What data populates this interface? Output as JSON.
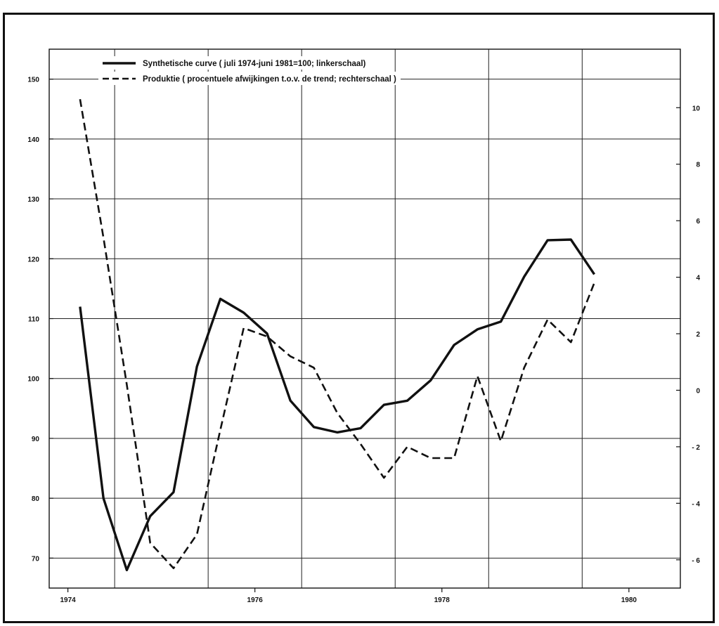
{
  "chart_data": {
    "type": "line",
    "title": "",
    "xlabel": "",
    "ylabel": "",
    "x_ticks": [
      "1974",
      "1976",
      "1978",
      "1980"
    ],
    "x_tick_values": [
      1974,
      1976,
      1978,
      1980
    ],
    "xlim": [
      1973.8,
      1980.55
    ],
    "left_axis": {
      "ylim": [
        65,
        155
      ],
      "ticks": [
        70,
        80,
        90,
        100,
        110,
        120,
        130,
        140,
        150
      ],
      "tick_labels": [
        "70",
        "80",
        "90",
        "100",
        "110",
        "120",
        "130",
        "140",
        "150"
      ]
    },
    "right_axis": {
      "ylim": [
        -7,
        12.07
      ],
      "ticks": [
        -6,
        -4,
        -2,
        0,
        2,
        4,
        6,
        8,
        10
      ],
      "tick_labels": [
        "- 6",
        "- 4",
        "- 2",
        "0",
        "2",
        "4",
        "6",
        "8",
        "10"
      ]
    },
    "grid": true,
    "grid_x": [
      1974.5,
      1975.5,
      1976.5,
      1977.5,
      1978.5,
      1979.5
    ],
    "legend": {
      "placement": "top-left",
      "entries": [
        {
          "label": "Synthetische curve ( juli 1974-juni 1981=100; linkerschaal)",
          "style": "solid"
        },
        {
          "label": "Produktie ( procentuele afwijkingen t.o.v. de trend; rechterschaal )",
          "style": "dashed"
        }
      ]
    },
    "series": [
      {
        "name": "Synthetische curve ( juli 1974-juni 1981=100; linkerschaal)",
        "axis": "left",
        "style": "solid",
        "color": "#111111",
        "points": [
          {
            "x": 1974.13,
            "y": 112
          },
          {
            "x": 1974.38,
            "y": 80
          },
          {
            "x": 1974.63,
            "y": 68
          },
          {
            "x": 1974.88,
            "y": 77
          },
          {
            "x": 1975.13,
            "y": 81
          },
          {
            "x": 1975.38,
            "y": 102
          },
          {
            "x": 1975.63,
            "y": 113.3
          },
          {
            "x": 1975.88,
            "y": 111
          },
          {
            "x": 1976.13,
            "y": 107.5
          },
          {
            "x": 1976.38,
            "y": 96.3
          },
          {
            "x": 1976.63,
            "y": 91.9
          },
          {
            "x": 1976.88,
            "y": 91
          },
          {
            "x": 1977.13,
            "y": 91.7
          },
          {
            "x": 1977.38,
            "y": 95.6
          },
          {
            "x": 1977.63,
            "y": 96.3
          },
          {
            "x": 1977.88,
            "y": 99.7
          },
          {
            "x": 1978.13,
            "y": 105.6
          },
          {
            "x": 1978.38,
            "y": 108.2
          },
          {
            "x": 1978.63,
            "y": 109.5
          },
          {
            "x": 1978.88,
            "y": 117
          },
          {
            "x": 1979.13,
            "y": 123.1
          },
          {
            "x": 1979.38,
            "y": 123.2
          },
          {
            "x": 1979.63,
            "y": 117.4
          }
        ]
      },
      {
        "name": "Produktie ( procentuele afwijkingen t.o.v. de trend; rechterschaal )",
        "axis": "right",
        "style": "dashed",
        "color": "#111111",
        "points": [
          {
            "x": 1974.13,
            "y": 10.3
          },
          {
            "x": 1974.38,
            "y": 5.4
          },
          {
            "x": 1974.63,
            "y": 0.2
          },
          {
            "x": 1974.88,
            "y": -5.4
          },
          {
            "x": 1975.13,
            "y": -6.3
          },
          {
            "x": 1975.38,
            "y": -5.1
          },
          {
            "x": 1975.63,
            "y": -1.4
          },
          {
            "x": 1975.88,
            "y": 2.2
          },
          {
            "x": 1976.13,
            "y": 1.9
          },
          {
            "x": 1976.38,
            "y": 1.2
          },
          {
            "x": 1976.63,
            "y": 0.8
          },
          {
            "x": 1976.88,
            "y": -0.8
          },
          {
            "x": 1977.13,
            "y": -1.9
          },
          {
            "x": 1977.38,
            "y": -3.1
          },
          {
            "x": 1977.63,
            "y": -2.0
          },
          {
            "x": 1977.88,
            "y": -2.4
          },
          {
            "x": 1978.13,
            "y": -2.4
          },
          {
            "x": 1978.38,
            "y": 0.5
          },
          {
            "x": 1978.63,
            "y": -1.8
          },
          {
            "x": 1978.88,
            "y": 0.8
          },
          {
            "x": 1979.13,
            "y": 2.5
          },
          {
            "x": 1979.38,
            "y": 1.7
          },
          {
            "x": 1979.63,
            "y": 3.8
          }
        ]
      }
    ]
  }
}
